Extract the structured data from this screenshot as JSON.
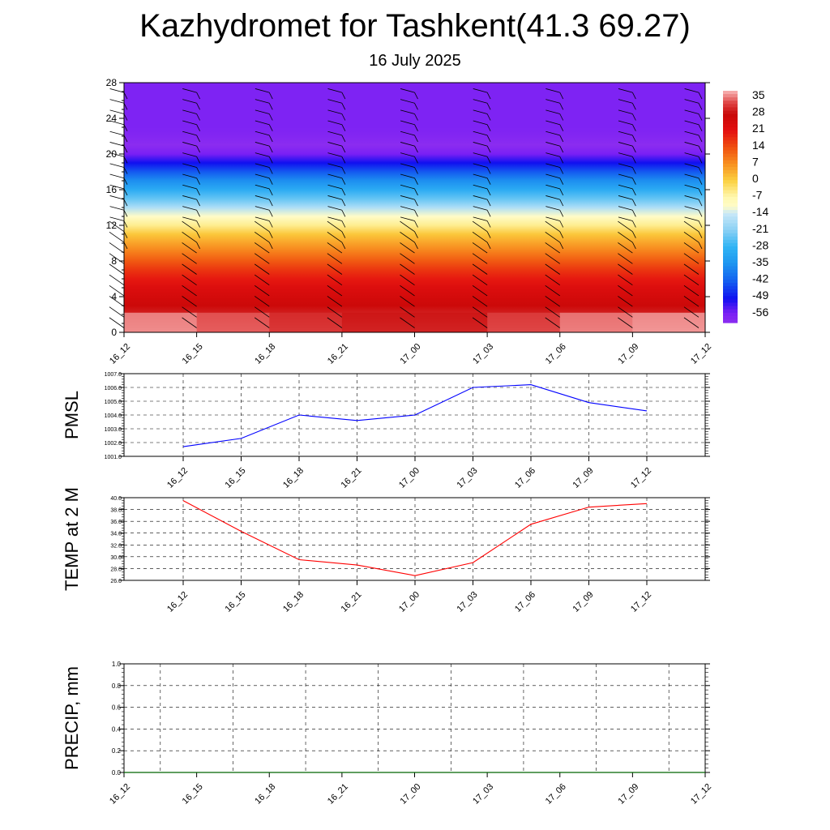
{
  "title": "Kazhydromet for Tashkent(41.3 69.27)",
  "subtitle": "16 July 2025",
  "chart_data": [
    {
      "type": "heatmap",
      "description_tag": "temperature-cross-section",
      "x_categories": [
        "16_12",
        "16_15",
        "16_18",
        "16_21",
        "17_00",
        "17_03",
        "17_06",
        "17_09",
        "17_12"
      ],
      "y_ticks": [
        0,
        4,
        8,
        12,
        16,
        20,
        24,
        28
      ],
      "ylim": [
        0,
        28
      ],
      "colorbar_labels": [
        "35",
        "28",
        "21",
        "14",
        "7",
        "0",
        "-7",
        "-14",
        "-21",
        "-28",
        "-35",
        "-42",
        "-49",
        "-56"
      ],
      "colorbar_range": [
        -60,
        38
      ],
      "profile_levels": [
        0,
        1,
        2,
        3,
        4,
        5,
        6,
        7,
        8,
        9,
        10,
        11,
        12,
        13,
        14,
        15,
        16,
        17,
        18,
        19,
        20,
        21,
        22,
        23,
        28
      ],
      "profile_values": [
        35,
        33,
        30,
        27,
        25,
        23,
        20,
        17,
        13,
        9,
        5,
        1,
        -5,
        -11,
        -17,
        -24,
        -30,
        -36,
        -43,
        -50,
        -56,
        -60,
        -58,
        -57,
        -57
      ],
      "colors": {
        "purple": "#8b2cf0",
        "blue": "#1010f0",
        "lightblue": "#30a8f0",
        "paleblue": "#c8e8f8",
        "paleyellow": "#fff8b0",
        "orange": "#f89020",
        "red": "#e41010",
        "darkred": "#c80808",
        "pink": "#f8b0b0"
      }
    },
    {
      "type": "line",
      "description_tag": "pmsl",
      "ylabel": "PMSL",
      "x": [
        "16_12",
        "16_15",
        "16_18",
        "16_21",
        "17_00",
        "17_03",
        "17_06",
        "17_09",
        "17_12"
      ],
      "values": [
        1001.7,
        1002.3,
        1004.0,
        1003.6,
        1004.0,
        1006.0,
        1006.2,
        1004.9,
        1004.3
      ],
      "ylim": [
        1001.0,
        1007.0
      ],
      "y_ticks": [
        "1001.0",
        "1002.0",
        "1003.0",
        "1004.0",
        "1005.0",
        "1006.0",
        "1007.0"
      ],
      "color": "#0000ff",
      "grid": true
    },
    {
      "type": "line",
      "description_tag": "temp-2m",
      "ylabel": "TEMP at 2 M",
      "x": [
        "16_12",
        "16_15",
        "16_18",
        "16_21",
        "17_00",
        "17_03",
        "17_06",
        "17_09",
        "17_12"
      ],
      "values": [
        39.5,
        34.3,
        29.5,
        28.6,
        26.8,
        29.0,
        35.5,
        38.4,
        39.0
      ],
      "ylim": [
        26.0,
        40.0
      ],
      "y_ticks": [
        "26.0",
        "28.0",
        "30.0",
        "32.0",
        "34.0",
        "36.0",
        "38.0",
        "40.0"
      ],
      "color": "#ff0000",
      "grid": true
    },
    {
      "type": "line",
      "description_tag": "precip",
      "ylabel": "PRECIP, mm",
      "x": [
        "16_12",
        "16_15",
        "16_18",
        "16_21",
        "17_00",
        "17_03",
        "17_06",
        "17_09",
        "17_12"
      ],
      "values": [
        0,
        0,
        0,
        0,
        0,
        0,
        0,
        0,
        0
      ],
      "ylim": [
        0.0,
        1.0
      ],
      "y_ticks": [
        "0.0",
        "0.2",
        "0.4",
        "0.6",
        "0.8",
        "1.0"
      ],
      "color": "#006400",
      "grid": true
    }
  ]
}
